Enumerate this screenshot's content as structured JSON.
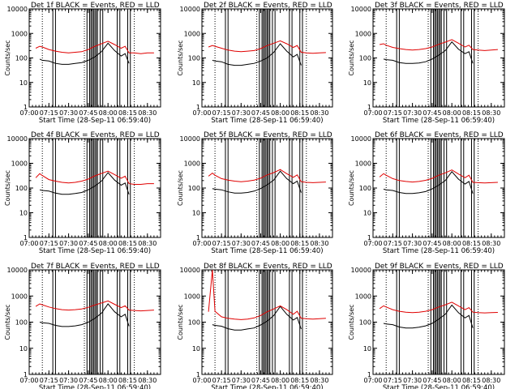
{
  "figure": {
    "y_axis_label": "Counts/sec",
    "x_axis_label": "Start Time (28-Sep-11 06:59:40)",
    "x_tick_labels": [
      "07:00",
      "07:15",
      "07:30",
      "07:45",
      "08:00",
      "08:15",
      "08:30"
    ],
    "y_tick_labels": [
      "1",
      "10",
      "100",
      "1000",
      "10000"
    ],
    "colors": {
      "events": "#000000",
      "lld": "#e00000",
      "background": "#ffffff"
    }
  },
  "chart_data": [
    {
      "type": "line",
      "title": "Det 1f BLACK = Events, RED = LLD",
      "xlabel": "Start Time (28-Sep-11 06:59:40)",
      "ylabel": "Counts/sec",
      "ylim": [
        1,
        10000
      ],
      "y_scale": "log",
      "x_range": [
        "07:00",
        "08:40"
      ],
      "x": [
        "07:05",
        "07:08",
        "07:10",
        "07:15",
        "07:20",
        "07:25",
        "07:30",
        "07:35",
        "07:40",
        "07:45",
        "07:50",
        "07:55",
        "08:00",
        "08:05",
        "08:10",
        "08:13",
        "08:16",
        "08:20",
        "08:25",
        "08:30",
        "08:35"
      ],
      "series": [
        {
          "name": "Events",
          "values": [
            null,
            90,
            80,
            75,
            60,
            55,
            55,
            60,
            65,
            80,
            110,
            180,
            400,
            200,
            120,
            150,
            60,
            null,
            null,
            null,
            null
          ]
        },
        {
          "name": "LLD",
          "values": [
            250,
            300,
            280,
            220,
            190,
            170,
            160,
            170,
            180,
            220,
            300,
            380,
            480,
            350,
            250,
            300,
            160,
            160,
            150,
            160,
            160
          ]
        }
      ]
    },
    {
      "type": "line",
      "title": "Det 2f BLACK = Events, RED = LLD",
      "xlabel": "Start Time (28-Sep-11 06:59:40)",
      "ylabel": "Counts/sec",
      "ylim": [
        1,
        10000
      ],
      "y_scale": "log",
      "x_range": [
        "07:00",
        "08:40"
      ],
      "x": [
        "07:05",
        "07:08",
        "07:10",
        "07:15",
        "07:20",
        "07:25",
        "07:30",
        "07:35",
        "07:40",
        "07:45",
        "07:50",
        "07:55",
        "08:00",
        "08:05",
        "08:10",
        "08:13",
        "08:16",
        "08:20",
        "08:25",
        "08:30",
        "08:35"
      ],
      "series": [
        {
          "name": "Events",
          "values": [
            null,
            80,
            75,
            70,
            55,
            50,
            50,
            55,
            60,
            75,
            100,
            170,
            380,
            190,
            110,
            140,
            50,
            null,
            null,
            null,
            null
          ]
        },
        {
          "name": "LLD",
          "values": [
            280,
            320,
            300,
            250,
            210,
            190,
            180,
            190,
            200,
            240,
            320,
            400,
            500,
            380,
            270,
            320,
            170,
            160,
            155,
            160,
            165
          ]
        }
      ]
    },
    {
      "type": "line",
      "title": "Det 3f BLACK = Events, RED = LLD",
      "xlabel": "Start Time (28-Sep-11 06:59:40)",
      "ylabel": "Counts/sec",
      "ylim": [
        1,
        10000
      ],
      "y_scale": "log",
      "x_range": [
        "07:00",
        "08:40"
      ],
      "x": [
        "07:05",
        "07:08",
        "07:10",
        "07:15",
        "07:20",
        "07:25",
        "07:30",
        "07:35",
        "07:40",
        "07:45",
        "07:50",
        "07:55",
        "08:00",
        "08:05",
        "08:10",
        "08:13",
        "08:16",
        "08:20",
        "08:25",
        "08:30",
        "08:35"
      ],
      "series": [
        {
          "name": "Events",
          "values": [
            null,
            90,
            85,
            80,
            65,
            60,
            60,
            62,
            70,
            90,
            130,
            200,
            450,
            230,
            150,
            180,
            60,
            null,
            null,
            null,
            null
          ]
        },
        {
          "name": "LLD",
          "values": [
            350,
            380,
            330,
            270,
            240,
            220,
            210,
            220,
            240,
            280,
            360,
            440,
            560,
            400,
            280,
            330,
            220,
            210,
            200,
            210,
            220
          ]
        }
      ]
    },
    {
      "type": "line",
      "title": "Det 4f BLACK = Events, RED = LLD",
      "xlabel": "Start Time (28-Sep-11 06:59:40)",
      "ylabel": "Counts/sec",
      "ylim": [
        1,
        10000
      ],
      "y_scale": "log",
      "x_range": [
        "07:00",
        "08:40"
      ],
      "x": [
        "07:05",
        "07:08",
        "07:10",
        "07:15",
        "07:20",
        "07:25",
        "07:30",
        "07:35",
        "07:40",
        "07:45",
        "07:50",
        "07:55",
        "08:00",
        "08:05",
        "08:10",
        "08:13",
        "08:16",
        "08:20",
        "08:25",
        "08:30",
        "08:35"
      ],
      "series": [
        {
          "name": "Events",
          "values": [
            null,
            85,
            80,
            75,
            62,
            56,
            56,
            60,
            66,
            85,
            120,
            190,
            420,
            210,
            130,
            160,
            55,
            null,
            null,
            null,
            null
          ]
        },
        {
          "name": "LLD",
          "values": [
            260,
            380,
            320,
            220,
            190,
            170,
            160,
            170,
            190,
            230,
            310,
            390,
            480,
            350,
            250,
            300,
            150,
            140,
            140,
            150,
            150
          ]
        }
      ]
    },
    {
      "type": "line",
      "title": "Det 5f BLACK = Events, RED = LLD",
      "xlabel": "Start Time (28-Sep-11 06:59:40)",
      "ylabel": "Counts/sec",
      "ylim": [
        1,
        10000
      ],
      "y_scale": "log",
      "x_range": [
        "07:00",
        "08:40"
      ],
      "x": [
        "07:05",
        "07:08",
        "07:10",
        "07:15",
        "07:20",
        "07:25",
        "07:30",
        "07:35",
        "07:40",
        "07:45",
        "07:50",
        "07:55",
        "08:00",
        "08:05",
        "08:10",
        "08:13",
        "08:16",
        "08:20",
        "08:25",
        "08:30",
        "08:35"
      ],
      "series": [
        {
          "name": "Events",
          "values": [
            null,
            95,
            90,
            85,
            70,
            62,
            62,
            66,
            75,
            95,
            135,
            210,
            480,
            240,
            150,
            190,
            65,
            null,
            null,
            null,
            null
          ]
        },
        {
          "name": "LLD",
          "values": [
            300,
            400,
            330,
            240,
            210,
            190,
            180,
            190,
            210,
            250,
            340,
            420,
            560,
            380,
            270,
            340,
            180,
            170,
            165,
            170,
            175
          ]
        }
      ]
    },
    {
      "type": "line",
      "title": "Det 6f BLACK = Events, RED = LLD",
      "xlabel": "Start Time (28-Sep-11 06:59:40)",
      "ylabel": "Counts/sec",
      "ylim": [
        1,
        10000
      ],
      "y_scale": "log",
      "x_range": [
        "07:00",
        "08:40"
      ],
      "x": [
        "07:05",
        "07:08",
        "07:10",
        "07:15",
        "07:20",
        "07:25",
        "07:30",
        "07:35",
        "07:40",
        "07:45",
        "07:50",
        "07:55",
        "08:00",
        "08:05",
        "08:10",
        "08:13",
        "08:16",
        "08:20",
        "08:25",
        "08:30",
        "08:35"
      ],
      "series": [
        {
          "name": "Events",
          "values": [
            null,
            90,
            85,
            80,
            66,
            60,
            60,
            64,
            72,
            92,
            130,
            200,
            460,
            230,
            145,
            185,
            60,
            null,
            null,
            null,
            null
          ]
        },
        {
          "name": "LLD",
          "values": [
            280,
            380,
            330,
            240,
            200,
            185,
            175,
            185,
            205,
            245,
            330,
            410,
            540,
            370,
            260,
            330,
            170,
            165,
            160,
            165,
            170
          ]
        }
      ]
    },
    {
      "type": "line",
      "title": "Det 7f BLACK = Events, RED = LLD",
      "xlabel": "Start Time (28-Sep-11 06:59:40)",
      "ylabel": "Counts/sec",
      "ylim": [
        1,
        10000
      ],
      "y_scale": "log",
      "x_range": [
        "07:00",
        "08:40"
      ],
      "x": [
        "07:05",
        "07:08",
        "07:10",
        "07:15",
        "07:20",
        "07:25",
        "07:30",
        "07:35",
        "07:40",
        "07:45",
        "07:50",
        "07:55",
        "08:00",
        "08:05",
        "08:10",
        "08:13",
        "08:16",
        "08:20",
        "08:25",
        "08:30",
        "08:35"
      ],
      "series": [
        {
          "name": "Events",
          "values": [
            null,
            100,
            95,
            90,
            75,
            68,
            68,
            72,
            80,
            100,
            140,
            220,
            500,
            250,
            160,
            200,
            70,
            null,
            null,
            null,
            null
          ]
        },
        {
          "name": "LLD",
          "values": [
            400,
            500,
            460,
            380,
            330,
            300,
            290,
            300,
            320,
            370,
            450,
            540,
            650,
            480,
            360,
            420,
            290,
            280,
            270,
            280,
            290
          ]
        }
      ]
    },
    {
      "type": "line",
      "title": "Det 8f BLACK = Events, RED = LLD",
      "xlabel": "Start Time (28-Sep-11 06:59:40)",
      "ylabel": "Counts/sec",
      "ylim": [
        1,
        10000
      ],
      "y_scale": "log",
      "x_range": [
        "07:00",
        "08:40"
      ],
      "x": [
        "07:05",
        "07:08",
        "07:10",
        "07:15",
        "07:20",
        "07:25",
        "07:30",
        "07:35",
        "07:40",
        "07:45",
        "07:50",
        "07:55",
        "08:00",
        "08:05",
        "08:10",
        "08:13",
        "08:16",
        "08:20",
        "08:25",
        "08:30",
        "08:35"
      ],
      "series": [
        {
          "name": "Events",
          "values": [
            null,
            80,
            75,
            70,
            56,
            50,
            50,
            55,
            60,
            78,
            110,
            180,
            400,
            200,
            120,
            150,
            55,
            null,
            null,
            null,
            null
          ]
        },
        {
          "name": "LLD",
          "values": [
            250,
            10000,
            260,
            160,
            140,
            130,
            125,
            130,
            145,
            180,
            250,
            320,
            420,
            300,
            200,
            260,
            140,
            135,
            130,
            135,
            140
          ]
        }
      ]
    },
    {
      "type": "line",
      "title": "Det 9f BLACK = Events, RED = LLD",
      "xlabel": "Start Time (28-Sep-11 06:59:40)",
      "ylabel": "Counts/sec",
      "ylim": [
        1,
        10000
      ],
      "y_scale": "log",
      "x_range": [
        "07:00",
        "08:40"
      ],
      "x": [
        "07:05",
        "07:08",
        "07:10",
        "07:15",
        "07:20",
        "07:25",
        "07:30",
        "07:35",
        "07:40",
        "07:45",
        "07:50",
        "07:55",
        "08:00",
        "08:05",
        "08:10",
        "08:13",
        "08:16",
        "08:20",
        "08:25",
        "08:30",
        "08:35"
      ],
      "series": [
        {
          "name": "Events",
          "values": [
            null,
            90,
            85,
            80,
            65,
            60,
            60,
            64,
            72,
            90,
            130,
            200,
            450,
            230,
            145,
            180,
            60,
            null,
            null,
            null,
            null
          ]
        },
        {
          "name": "LLD",
          "values": [
            330,
            420,
            380,
            300,
            260,
            240,
            230,
            240,
            260,
            300,
            380,
            460,
            580,
            420,
            300,
            360,
            240,
            230,
            225,
            230,
            235
          ]
        }
      ]
    }
  ]
}
